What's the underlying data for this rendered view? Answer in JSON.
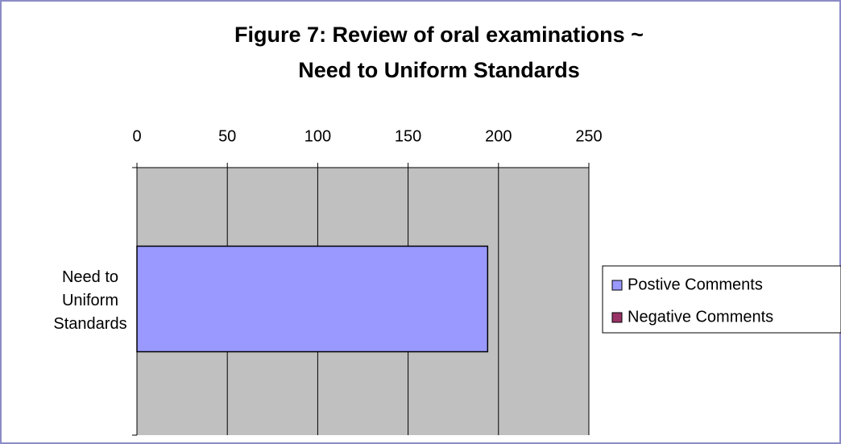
{
  "chart_data": {
    "type": "bar",
    "orientation": "horizontal",
    "title": [
      "Figure 7: Review of oral examinations ~",
      "Need to Uniform Standards"
    ],
    "categories": [
      "Need to Uniform Standards"
    ],
    "series": [
      {
        "name": "Postive Comments",
        "color": "#9999ff",
        "values": [
          194
        ]
      },
      {
        "name": "Negative Comments",
        "color": "#993366",
        "values": [
          0
        ]
      }
    ],
    "xlim": [
      0,
      250
    ],
    "xticks": [
      0,
      50,
      100,
      150,
      200,
      250
    ],
    "grid": true,
    "legend": "right"
  }
}
